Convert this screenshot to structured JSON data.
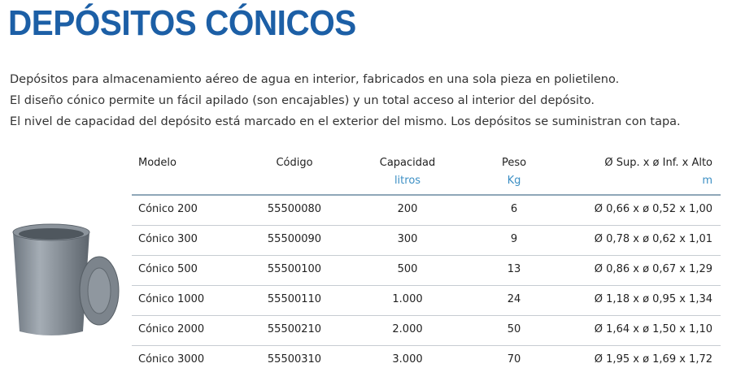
{
  "header": {
    "title": "DEPÓSITOS CÓNICOS"
  },
  "description": [
    "Depósitos para almacenamiento aéreo de agua en interior, fabricados en una sola pieza en polietileno.",
    "El diseño cónico permite un fácil apilado (son encajables) y un total acceso al interior del depósito.",
    "El nivel de capacidad del depósito está marcado en el exterior del mismo. Los depósitos se suministran con tapa."
  ],
  "table": {
    "columns": [
      {
        "name": "Modelo"
      },
      {
        "name": "Código"
      },
      {
        "name": "Capacidad",
        "unit": "litros"
      },
      {
        "name": "Peso",
        "unit": "Kg"
      },
      {
        "name": "Ø Sup. x ø Inf. x Alto",
        "unit": "m"
      }
    ],
    "rows": [
      [
        "Cónico 200",
        "55500080",
        "200",
        "6",
        "Ø 0,66 x ø 0,52 x 1,00"
      ],
      [
        "Cónico 300",
        "55500090",
        "300",
        "9",
        "Ø 0,78 x ø 0,62 x 1,01"
      ],
      [
        "Cónico 500",
        "55500100",
        "500",
        "13",
        "Ø 0,86 x ø 0,67 x 1,29"
      ],
      [
        "Cónico 1000",
        "55500110",
        "1.000",
        "24",
        "Ø 1,18 x ø 0,95 x 1,34"
      ],
      [
        "Cónico 2000",
        "55500210",
        "2.000",
        "50",
        "Ø 1,64 x ø 1,50 x 1,10"
      ],
      [
        "Cónico 3000",
        "55500310",
        "3.000",
        "70",
        "Ø 1,95 x ø 1,69 x 1,72"
      ]
    ]
  }
}
